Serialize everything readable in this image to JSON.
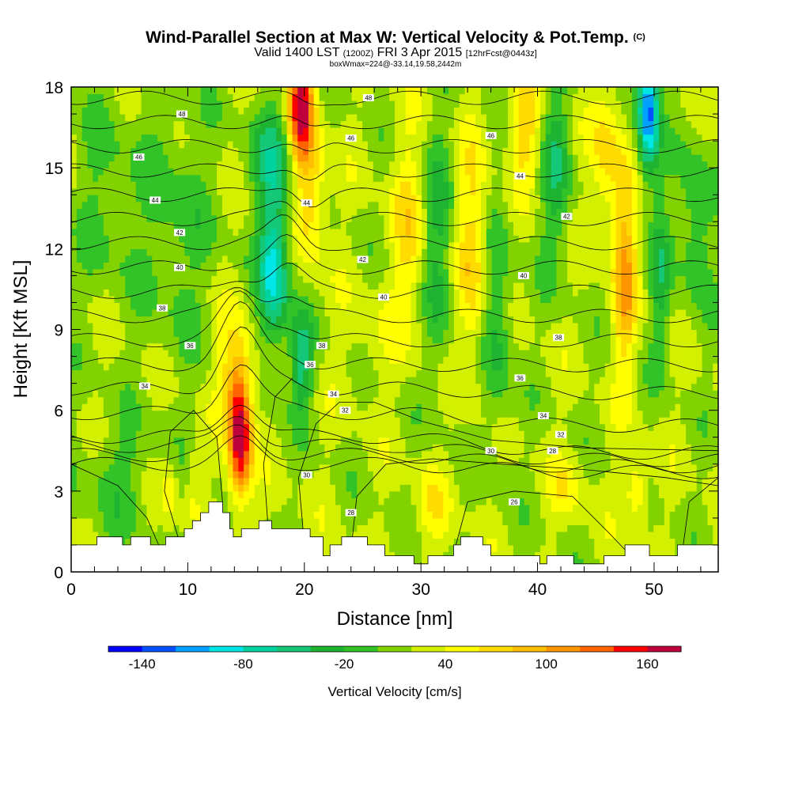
{
  "title": {
    "main": "Wind-Parallel Section at Max W: Vertical Velocity & Pot.Temp.",
    "copyright": "(C)",
    "valid_prefix": "Valid 1400 LST",
    "valid_zulu": "(1200Z)",
    "valid_date": "FRI 3 Apr 2015",
    "forecast": "[12hrFcst@0443z]",
    "boxinfo": "boxWmax=224@-33.14,19.58,2442m"
  },
  "chart_data": {
    "type": "heatmap",
    "xlabel": "Distance [nm]",
    "ylabel": "Height [Kft MSL]",
    "xlim": [
      0,
      55.5
    ],
    "ylim": [
      0,
      18
    ],
    "xticks": [
      "0",
      "10",
      "20",
      "30",
      "40",
      "50"
    ],
    "yticks": [
      "0",
      "3",
      "6",
      "9",
      "12",
      "15",
      "18"
    ],
    "colorbar": {
      "label": "Vertical Velocity [cm/s]",
      "ticks": [
        "-140",
        "-80",
        "-20",
        "40",
        "100",
        "160"
      ],
      "levels": [
        -160,
        -140,
        -120,
        -100,
        -80,
        -60,
        -40,
        -20,
        0,
        20,
        40,
        60,
        80,
        100,
        120,
        140,
        160,
        180
      ],
      "colors": [
        "#0000ff",
        "#0050ff",
        "#00a0ff",
        "#00e6e6",
        "#00d2a0",
        "#14c878",
        "#1eb432",
        "#32c328",
        "#82d200",
        "#d2f000",
        "#ffff00",
        "#ffdc00",
        "#ffbe00",
        "#ff9600",
        "#ff6400",
        "#ff0000",
        "#be003c"
      ]
    },
    "features": [
      {
        "name": "updraft core",
        "x": 14.5,
        "z": 5.0,
        "w": 180
      },
      {
        "name": "upper updraft",
        "x": 20,
        "z": 16.5,
        "w": 160
      },
      {
        "name": "downdraft",
        "x": 17.5,
        "z": 11.5,
        "w": -90
      },
      {
        "name": "upper downdraft",
        "x": 49.5,
        "z": 17,
        "w": -110
      }
    ],
    "theta_labels": [
      {
        "text": "48",
        "x": 9.5,
        "z": 17.0
      },
      {
        "text": "48",
        "x": 25.5,
        "z": 17.6
      },
      {
        "text": "46",
        "x": 5.8,
        "z": 15.4
      },
      {
        "text": "46",
        "x": 24,
        "z": 16.1
      },
      {
        "text": "46",
        "x": 36,
        "z": 16.2
      },
      {
        "text": "44",
        "x": 7.2,
        "z": 13.8
      },
      {
        "text": "44",
        "x": 20.2,
        "z": 13.7
      },
      {
        "text": "44",
        "x": 38.5,
        "z": 14.7
      },
      {
        "text": "42",
        "x": 9.3,
        "z": 12.6
      },
      {
        "text": "42",
        "x": 25,
        "z": 11.6
      },
      {
        "text": "42",
        "x": 42.5,
        "z": 13.2
      },
      {
        "text": "40",
        "x": 9.3,
        "z": 11.3
      },
      {
        "text": "40",
        "x": 26.8,
        "z": 10.2
      },
      {
        "text": "40",
        "x": 38.8,
        "z": 11.0
      },
      {
        "text": "38",
        "x": 7.8,
        "z": 9.8
      },
      {
        "text": "38",
        "x": 21.5,
        "z": 8.4
      },
      {
        "text": "38",
        "x": 41.8,
        "z": 8.7
      },
      {
        "text": "36",
        "x": 10.2,
        "z": 8.4
      },
      {
        "text": "36",
        "x": 20.5,
        "z": 7.7
      },
      {
        "text": "36",
        "x": 38.5,
        "z": 7.2
      },
      {
        "text": "34",
        "x": 6.3,
        "z": 6.9
      },
      {
        "text": "34",
        "x": 22.5,
        "z": 6.6
      },
      {
        "text": "34",
        "x": 40.5,
        "z": 5.8
      },
      {
        "text": "32",
        "x": 23.5,
        "z": 6.0
      },
      {
        "text": "32",
        "x": 42,
        "z": 5.1
      },
      {
        "text": "30",
        "x": 20.2,
        "z": 3.6
      },
      {
        "text": "30",
        "x": 36,
        "z": 4.5
      },
      {
        "text": "28",
        "x": 24,
        "z": 2.2
      },
      {
        "text": "28",
        "x": 41.3,
        "z": 4.5
      },
      {
        "text": "26",
        "x": 38,
        "z": 2.6
      }
    ]
  }
}
